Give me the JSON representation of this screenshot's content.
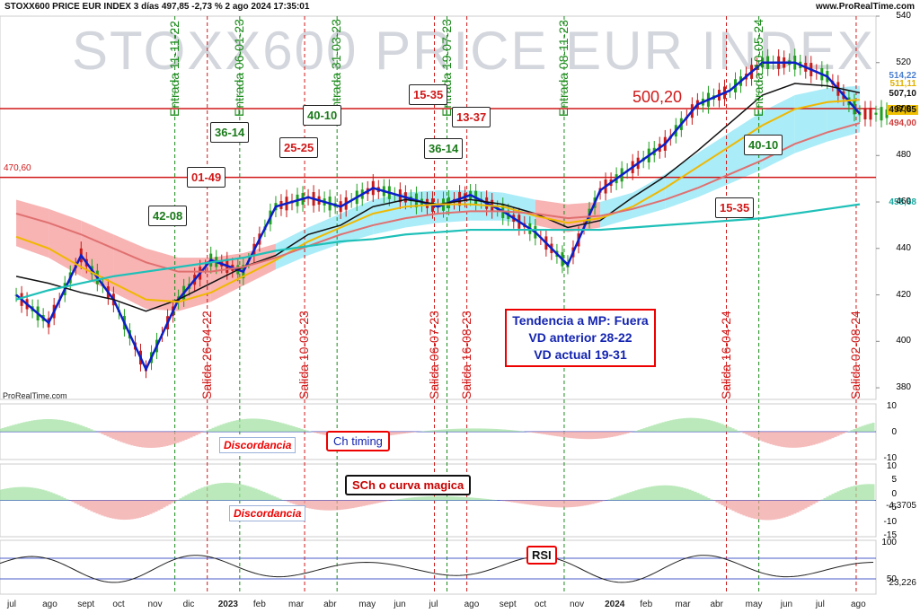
{
  "header": {
    "title": "STOXX600 PRICE EUR INDEX 3 días 497,85 -2,73 % 2 ago 2024 17:35:01",
    "site": "www.ProRealTime.com",
    "watermark": "STOXX600 PRICE EUR INDEX",
    "source": "ProRealTime.com"
  },
  "colors": {
    "price": "#0b1fc8",
    "fast_ma": "#111111",
    "mid_ma": "#f0b800",
    "slow_ma": "#e07070",
    "long_ma": "#1ec0b8",
    "cloud_bull": "#8ee6f5",
    "cloud_bear": "#f59a9a",
    "up": "#1f9e1f",
    "down": "#c81a1a"
  },
  "chart_data": [
    {
      "type": "line",
      "title": "STOXX600 PRICE EUR INDEX",
      "x": [
        "2022-06",
        "2022-07",
        "2022-08",
        "2022-09",
        "2022-10",
        "2022-11",
        "2022-12",
        "2023-01",
        "2023-02",
        "2023-03",
        "2023-04",
        "2023-05",
        "2023-06",
        "2023-07",
        "2023-08",
        "2023-09",
        "2023-10",
        "2023-11",
        "2023-12",
        "2024-01",
        "2024-02",
        "2024-03",
        "2024-04",
        "2024-05",
        "2024-06",
        "2024-07",
        "2024-08"
      ],
      "series": [
        {
          "name": "price",
          "values": [
            420,
            408,
            437,
            418,
            388,
            418,
            435,
            430,
            458,
            462,
            458,
            466,
            462,
            458,
            463,
            456,
            447,
            433,
            465,
            475,
            485,
            502,
            508,
            520,
            520,
            514,
            498
          ]
        },
        {
          "name": "ma_fast",
          "values": [
            428,
            425,
            421,
            418,
            413,
            418,
            425,
            432,
            437,
            446,
            450,
            458,
            461,
            459,
            461,
            459,
            455,
            449,
            452,
            462,
            471,
            482,
            494,
            506,
            511,
            510,
            507
          ]
        },
        {
          "name": "ma_mid",
          "values": [
            445,
            440,
            432,
            425,
            418,
            417,
            421,
            428,
            435,
            443,
            449,
            455,
            458,
            459,
            459,
            458,
            454,
            451,
            453,
            458,
            466,
            475,
            484,
            493,
            500,
            503,
            504
          ]
        },
        {
          "name": "ma_slow",
          "values": [
            455,
            451,
            446,
            440,
            434,
            430,
            430,
            432,
            436,
            441,
            446,
            450,
            453,
            455,
            456,
            456,
            455,
            453,
            454,
            457,
            461,
            466,
            472,
            478,
            485,
            490,
            494
          ]
        },
        {
          "name": "ma_long",
          "values": [
            418,
            422,
            425,
            428,
            430,
            432,
            434,
            436,
            439,
            441,
            443,
            444,
            446,
            447,
            448,
            448,
            448,
            448,
            448,
            449,
            450,
            451,
            452,
            453,
            455,
            457,
            459
          ]
        }
      ],
      "ylim": [
        375,
        540
      ],
      "yticks": [
        380,
        400,
        420,
        440,
        460,
        480,
        500,
        520,
        540
      ],
      "hlines": [
        {
          "value": 470.6,
          "label": "470,60"
        },
        {
          "value": 500.2,
          "label": "500,20"
        }
      ],
      "right_labels": [
        {
          "value": "514,22",
          "color": "#4a7fcf"
        },
        {
          "value": "511,11",
          "color": "#e0b000"
        },
        {
          "value": "507,10",
          "color": "#111111"
        },
        {
          "value": "497,85",
          "color": "#111111",
          "bg": "#f0c000"
        },
        {
          "value": "494,00",
          "color": "#d04040"
        },
        {
          "value": "458,68",
          "color": "#19a8a0"
        }
      ],
      "signals": [
        {
          "label": "Entrada 11-11-22",
          "kind": "entrada",
          "month": "2022-11"
        },
        {
          "label": "Salida 26-04-22",
          "kind": "salida",
          "month": "2022-12"
        },
        {
          "label": "Entrada 06-01-23",
          "kind": "entrada",
          "month": "2023-01"
        },
        {
          "label": "Salida 10-03-23",
          "kind": "salida",
          "month": "2023-03"
        },
        {
          "label": "Entrada 31-03-23",
          "kind": "entrada",
          "month": "2023-04"
        },
        {
          "label": "Salida 06-07-23",
          "kind": "salida",
          "month": "2023-07"
        },
        {
          "label": "Entrada 19-07-23",
          "kind": "entrada",
          "month": "2023-07"
        },
        {
          "label": "Salida 16-08-23",
          "kind": "salida",
          "month": "2023-08"
        },
        {
          "label": "Entrada 08-11-23",
          "kind": "entrada",
          "month": "2023-11"
        },
        {
          "label": "Salida 16-04-24",
          "kind": "salida",
          "month": "2024-04"
        },
        {
          "label": "Entrada 10-05-24",
          "kind": "entrada",
          "month": "2024-05"
        },
        {
          "label": "Salida 02-08-24",
          "kind": "salida",
          "month": "2024-08"
        }
      ],
      "annotations": [
        {
          "label": "42-08",
          "kind": "entrada"
        },
        {
          "label": "01-49",
          "kind": "salida"
        },
        {
          "label": "36-14",
          "kind": "entrada"
        },
        {
          "label": "25-25",
          "kind": "salida"
        },
        {
          "label": "40-10",
          "kind": "entrada"
        },
        {
          "label": "15-35",
          "kind": "salida"
        },
        {
          "label": "36-14",
          "kind": "entrada"
        },
        {
          "label": "13-37",
          "kind": "salida"
        },
        {
          "label": "40-10",
          "kind": "entrada"
        },
        {
          "label": "15-35",
          "kind": "salida"
        },
        {
          "label": "500,20",
          "kind": "level"
        }
      ],
      "info_box": [
        "Tendencia a MP: Fuera",
        "VD anterior 28-22",
        "VD actual 19-31"
      ]
    },
    {
      "type": "area",
      "title": "Ch timing",
      "yticks": [
        10,
        0,
        -10
      ],
      "annotation": "Discordancia"
    },
    {
      "type": "area",
      "title": "SCh o curva magica",
      "yticks": [
        10,
        5,
        0,
        -5,
        -10,
        -15
      ],
      "last_value": "-4,3705",
      "annotation": "Discordancia"
    },
    {
      "type": "line",
      "title": "RSI",
      "yticks": [
        100,
        50
      ],
      "last_value": "23,226"
    }
  ],
  "x_axis": [
    "jul",
    "ago",
    "sept",
    "oct",
    "nov",
    "dic",
    "2023",
    "feb",
    "mar",
    "abr",
    "may",
    "jun",
    "jul",
    "ago",
    "sept",
    "oct",
    "nov",
    "2024",
    "feb",
    "mar",
    "abr",
    "may",
    "jun",
    "jul",
    "ago"
  ]
}
